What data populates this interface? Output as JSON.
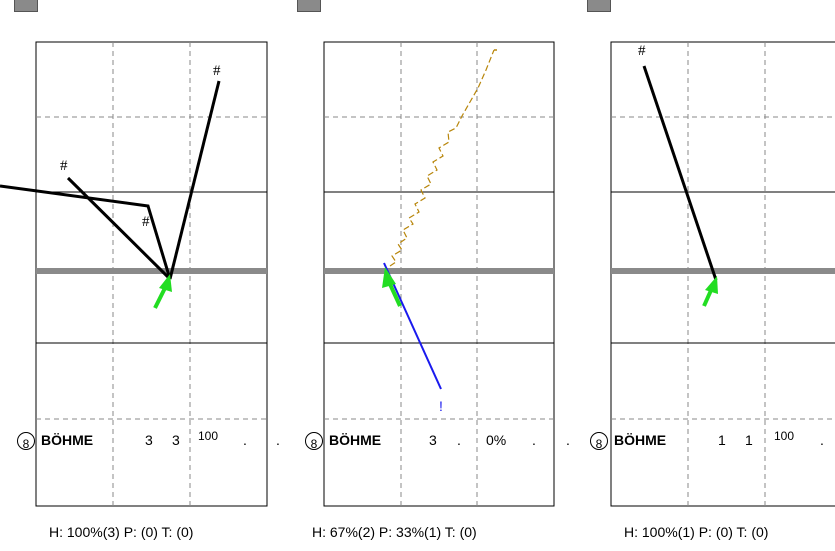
{
  "colors": {
    "shot_line": "#000000",
    "net_band": "#8a8a8a",
    "pass_arrow": "#22dd22",
    "miss_line": "#1a1aee",
    "movement_line": "#b8860b",
    "grid_solid": "#000000",
    "grid_dashed": "#888888"
  },
  "panels": [
    {
      "player": {
        "number": "8",
        "name": "BÖHME",
        "v1": "3",
        "v2": "3",
        "v3": "100",
        "dots": [
          ".",
          "."
        ]
      },
      "shot_marks": [
        "#",
        "#",
        "#"
      ],
      "footer": "H: 100%(3)  P: (0)  T: (0)"
    },
    {
      "player": {
        "number": "8",
        "name": "BÖHME",
        "v1": "3",
        "v2": ".",
        "v3": "0%",
        "dots": [
          ".",
          "."
        ]
      },
      "shot_marks": [
        "!"
      ],
      "footer": "H: 67%(2)  P: 33%(1)  T: (0)"
    },
    {
      "player": {
        "number": "8",
        "name": "BÖHME",
        "v1": "1",
        "v2": "1",
        "v3": "100",
        "dots": [
          "."
        ]
      },
      "shot_marks": [
        "#"
      ],
      "footer": "H: 100%(1)  P: (0)  T: (0)"
    }
  ]
}
